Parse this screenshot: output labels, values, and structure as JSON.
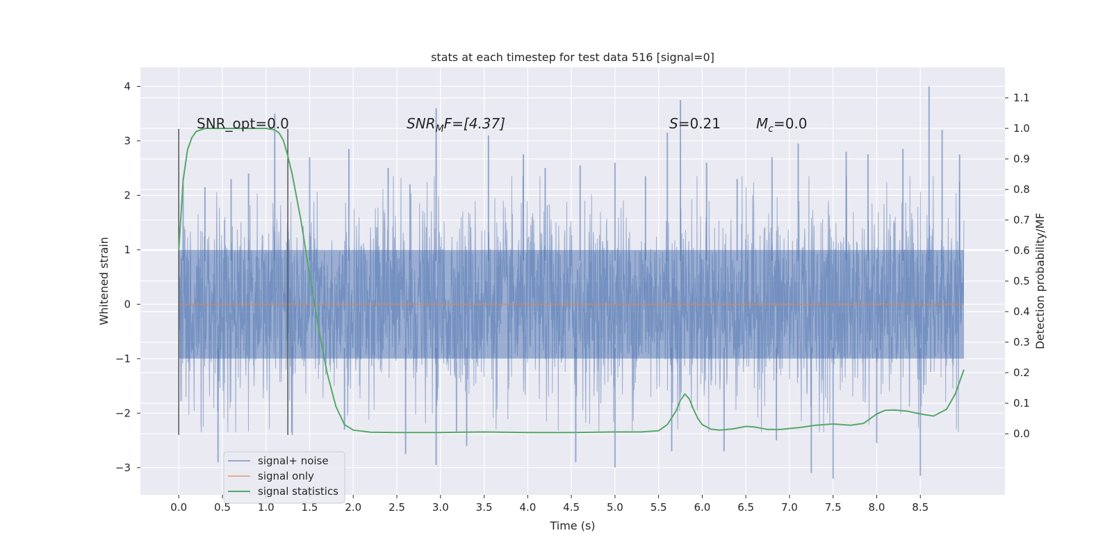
{
  "chart_data": {
    "type": "line",
    "title": "stats at each timestep for test data 516 [signal=0]",
    "xlabel": "Time (s)",
    "ylabel": "Whitened strain",
    "y2label": "Detection probability/MF",
    "xlim": [
      -0.44,
      9.47
    ],
    "ylim": [
      -3.5,
      4.35
    ],
    "y2lim": [
      -0.2,
      1.2
    ],
    "xticks": [
      0.0,
      0.5,
      1.0,
      1.5,
      2.0,
      2.5,
      3.0,
      3.5,
      4.0,
      4.5,
      5.0,
      5.5,
      6.0,
      6.5,
      7.0,
      7.5,
      8.0,
      8.5
    ],
    "xtick_labels": [
      "0.0",
      "0.5",
      "1.0",
      "1.5",
      "2.0",
      "2.5",
      "3.0",
      "3.5",
      "4.0",
      "4.5",
      "5.0",
      "5.5",
      "6.0",
      "6.5",
      "7.0",
      "7.5",
      "8.0",
      "8.5"
    ],
    "yticks": [
      -3,
      -2,
      -1,
      0,
      1,
      2,
      3,
      4
    ],
    "ytick_labels": [
      "−3",
      "−2",
      "−1",
      "0",
      "1",
      "2",
      "3",
      "4"
    ],
    "y2ticks": [
      0.0,
      0.1,
      0.2,
      0.3,
      0.4,
      0.5,
      0.6,
      0.7,
      0.8,
      0.9,
      1.0,
      1.1
    ],
    "y2tick_labels": [
      "0.0",
      "0.1",
      "0.2",
      "0.3",
      "0.4",
      "0.5",
      "0.6",
      "0.7",
      "0.8",
      "0.9",
      "1.0",
      "1.1"
    ],
    "grid": true,
    "legend_position": "lower-left",
    "annotations": {
      "snr_opt": "SNR_opt=0.0",
      "snr_mf_base": "SNR",
      "snr_mf_sub": "M",
      "snr_mf_rest": "F=[4.37]",
      "s_base": "S",
      "s_rest": "=0.21",
      "mc_base": "M",
      "mc_sub": "c",
      "mc_rest": "=0.0"
    },
    "noise_band": {
      "t_start": 0.0,
      "t_end": 9.0,
      "min": -2.4,
      "max": 4.0
    },
    "vertical_lines": [
      {
        "x": 0.0,
        "ymin": -2.4,
        "ymax": 3.22
      },
      {
        "x": 1.25,
        "ymin": -2.4,
        "ymax": 3.22
      }
    ],
    "series": [
      {
        "name": "signal+ noise",
        "color": "#4c72b0",
        "axis": "left",
        "peaks": [
          {
            "x": 0.05,
            "y": 2.2
          },
          {
            "x": 0.3,
            "y": 2.15
          },
          {
            "x": 0.6,
            "y": 2.3
          },
          {
            "x": 0.8,
            "y": 2.4
          },
          {
            "x": 1.1,
            "y": 3.5
          },
          {
            "x": 1.5,
            "y": 2.7
          },
          {
            "x": 1.95,
            "y": 2.85
          },
          {
            "x": 2.4,
            "y": 2.5
          },
          {
            "x": 2.65,
            "y": 2.2
          },
          {
            "x": 2.95,
            "y": 3.6
          },
          {
            "x": 3.55,
            "y": 3.1
          },
          {
            "x": 3.95,
            "y": 2.75
          },
          {
            "x": 4.2,
            "y": 2.5
          },
          {
            "x": 4.6,
            "y": 2.55
          },
          {
            "x": 5.0,
            "y": 2.6
          },
          {
            "x": 5.35,
            "y": 2.35
          },
          {
            "x": 5.6,
            "y": 3.15
          },
          {
            "x": 5.75,
            "y": 3.75
          },
          {
            "x": 6.05,
            "y": 2.6
          },
          {
            "x": 6.4,
            "y": 2.3
          },
          {
            "x": 6.8,
            "y": 2.7
          },
          {
            "x": 7.1,
            "y": 2.95
          },
          {
            "x": 7.65,
            "y": 2.8
          },
          {
            "x": 7.9,
            "y": 2.75
          },
          {
            "x": 8.3,
            "y": 2.85
          },
          {
            "x": 8.6,
            "y": 4.0
          },
          {
            "x": 8.75,
            "y": 3.2
          },
          {
            "x": 8.95,
            "y": 2.75
          }
        ],
        "troughs": [
          {
            "x": 0.45,
            "y": -2.9
          },
          {
            "x": 1.3,
            "y": -2.4
          },
          {
            "x": 1.9,
            "y": -2.3
          },
          {
            "x": 2.6,
            "y": -2.75
          },
          {
            "x": 2.95,
            "y": -2.95
          },
          {
            "x": 3.3,
            "y": -2.6
          },
          {
            "x": 4.55,
            "y": -2.9
          },
          {
            "x": 5.0,
            "y": -3.0
          },
          {
            "x": 5.65,
            "y": -2.7
          },
          {
            "x": 6.25,
            "y": -2.7
          },
          {
            "x": 6.85,
            "y": -2.5
          },
          {
            "x": 7.25,
            "y": -3.1
          },
          {
            "x": 7.5,
            "y": -3.2
          },
          {
            "x": 8.0,
            "y": -2.55
          },
          {
            "x": 8.5,
            "y": -3.15
          }
        ]
      },
      {
        "name": "signal only",
        "color": "#dd8452",
        "axis": "left",
        "x": [
          0.0,
          9.0
        ],
        "y": [
          0.0,
          0.0
        ]
      },
      {
        "name": "signal statistics",
        "color": "#55a868",
        "axis": "right",
        "x": [
          0.0,
          0.05,
          0.1,
          0.15,
          0.2,
          0.3,
          0.5,
          0.8,
          1.0,
          1.1,
          1.15,
          1.2,
          1.25,
          1.3,
          1.4,
          1.5,
          1.6,
          1.7,
          1.8,
          1.9,
          2.0,
          2.2,
          2.5,
          3.0,
          3.5,
          4.0,
          4.5,
          5.0,
          5.3,
          5.5,
          5.6,
          5.7,
          5.75,
          5.8,
          5.85,
          5.9,
          5.95,
          6.0,
          6.1,
          6.2,
          6.35,
          6.5,
          6.6,
          6.75,
          6.9,
          7.1,
          7.3,
          7.5,
          7.7,
          7.85,
          8.0,
          8.1,
          8.2,
          8.35,
          8.5,
          8.65,
          8.8,
          8.9,
          9.0
        ],
        "y": [
          0.6,
          0.83,
          0.93,
          0.97,
          0.99,
          1.0,
          1.0,
          1.0,
          1.0,
          0.995,
          0.985,
          0.96,
          0.91,
          0.85,
          0.7,
          0.52,
          0.35,
          0.2,
          0.09,
          0.03,
          0.012,
          0.005,
          0.004,
          0.004,
          0.006,
          0.004,
          0.004,
          0.006,
          0.006,
          0.01,
          0.03,
          0.075,
          0.11,
          0.13,
          0.115,
          0.08,
          0.05,
          0.03,
          0.015,
          0.012,
          0.016,
          0.024,
          0.022,
          0.014,
          0.014,
          0.02,
          0.028,
          0.032,
          0.028,
          0.034,
          0.065,
          0.077,
          0.078,
          0.074,
          0.065,
          0.058,
          0.08,
          0.13,
          0.21
        ]
      }
    ]
  }
}
